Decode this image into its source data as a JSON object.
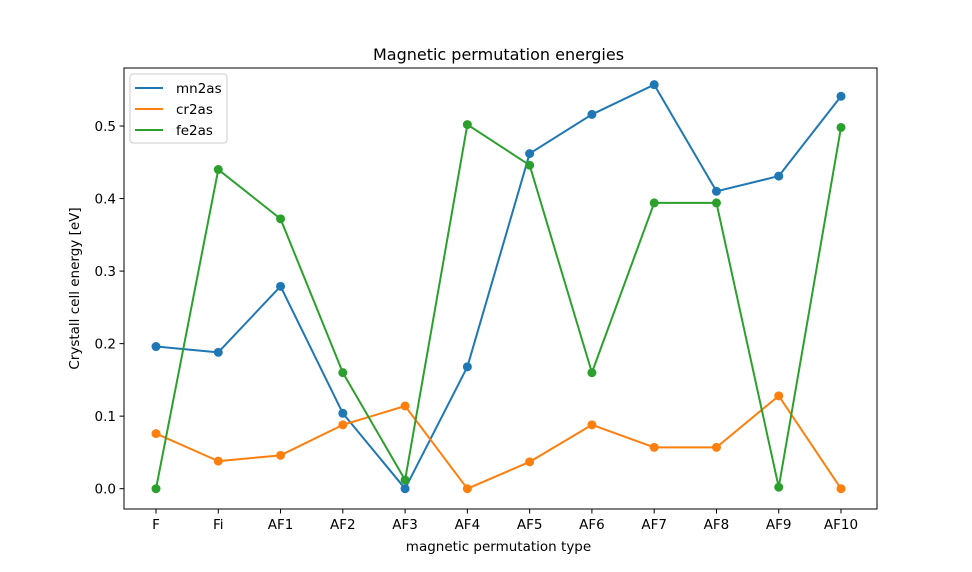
{
  "chart_data": {
    "type": "line",
    "title": "Magnetic permutation energies",
    "xlabel": "magnetic permutation type",
    "ylabel": "Crystall cell energy [eV]",
    "categories": [
      "F",
      "Fi",
      "AF1",
      "AF2",
      "AF3",
      "AF4",
      "AF5",
      "AF6",
      "AF7",
      "AF8",
      "AF9",
      "AF10"
    ],
    "ylim": [
      -0.028,
      0.58
    ],
    "yticks": [
      "0.0",
      "0.1",
      "0.2",
      "0.3",
      "0.4",
      "0.5"
    ],
    "grid": false,
    "legend_position": "top-left",
    "series": [
      {
        "name": "mn2as",
        "color": "#1f77b4",
        "values": [
          0.196,
          0.188,
          0.279,
          0.104,
          0.0,
          0.168,
          0.462,
          0.516,
          0.557,
          0.41,
          0.431,
          0.541
        ]
      },
      {
        "name": "cr2as",
        "color": "#ff7f0e",
        "values": [
          0.076,
          0.038,
          0.046,
          0.088,
          0.114,
          0.0,
          0.037,
          0.088,
          0.057,
          0.057,
          0.128,
          0.0
        ]
      },
      {
        "name": "fe2as",
        "color": "#2ca02c",
        "values": [
          0.0,
          0.44,
          0.372,
          0.16,
          0.012,
          0.502,
          0.446,
          0.16,
          0.394,
          0.394,
          0.002,
          0.498
        ]
      }
    ]
  }
}
